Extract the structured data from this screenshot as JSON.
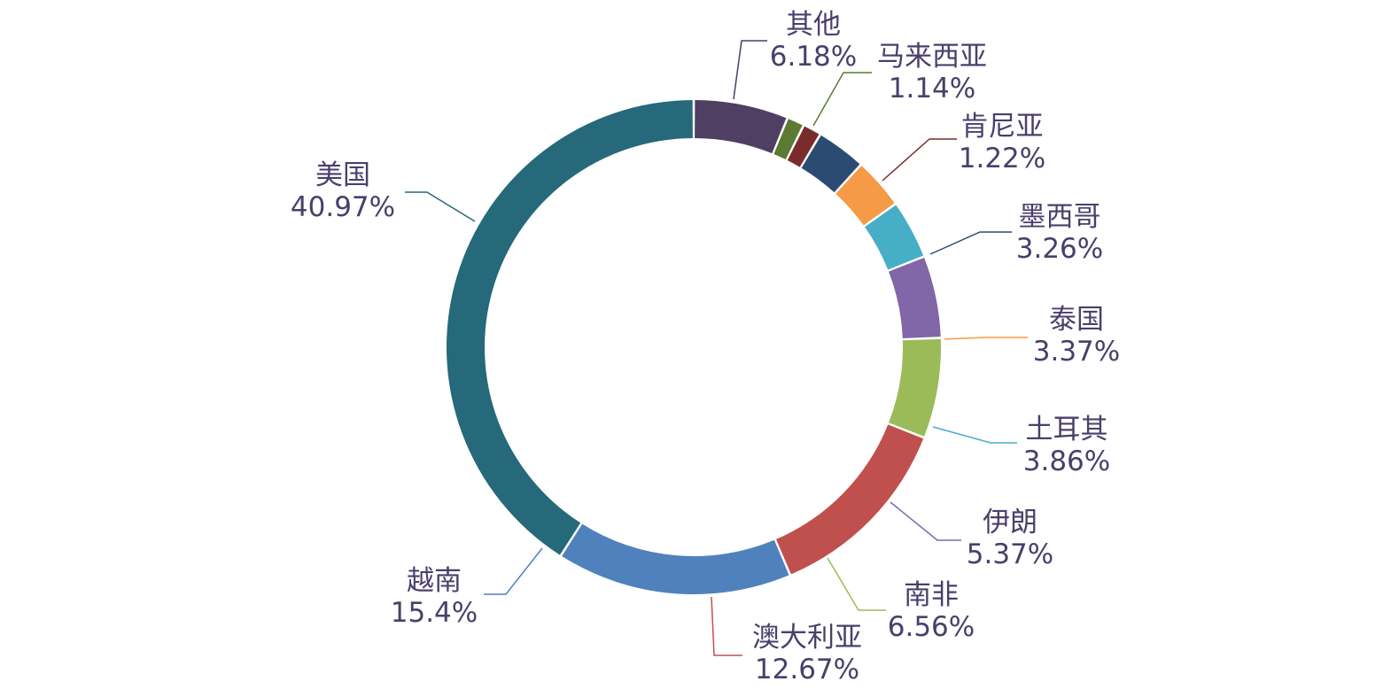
{
  "chart_data": {
    "type": "pie",
    "donut": true,
    "title": "",
    "slices": [
      {
        "label": "其他",
        "value": 6.18,
        "value_label": "6.18%",
        "color": "#4f3f63"
      },
      {
        "label": "马来西亚",
        "value": 1.14,
        "value_label": "1.14%",
        "color": "#5c7a33"
      },
      {
        "label": "肯尼亚",
        "value": 1.22,
        "value_label": "1.22%",
        "color": "#7a2c2c"
      },
      {
        "label": "墨西哥",
        "value": 3.26,
        "value_label": "3.26%",
        "color": "#2c4b73"
      },
      {
        "label": "泰国",
        "value": 3.37,
        "value_label": "3.37%",
        "color": "#f59a47"
      },
      {
        "label": "土耳其",
        "value": 3.86,
        "value_label": "3.86%",
        "color": "#47aec8"
      },
      {
        "label": "伊朗",
        "value": 5.37,
        "value_label": "5.37%",
        "color": "#8166a8"
      },
      {
        "label": "南非",
        "value": 6.56,
        "value_label": "6.56%",
        "color": "#9bbb59"
      },
      {
        "label": "澳大利亚",
        "value": 12.67,
        "value_label": "12.67%",
        "color": "#c0504d"
      },
      {
        "label": "越南",
        "value": 15.4,
        "value_label": "15.4%",
        "color": "#4f81bd"
      },
      {
        "label": "美国",
        "value": 40.97,
        "value_label": "40.97%",
        "color": "#25697a"
      }
    ],
    "legend": "none",
    "labels": "outside-with-leader-lines"
  }
}
